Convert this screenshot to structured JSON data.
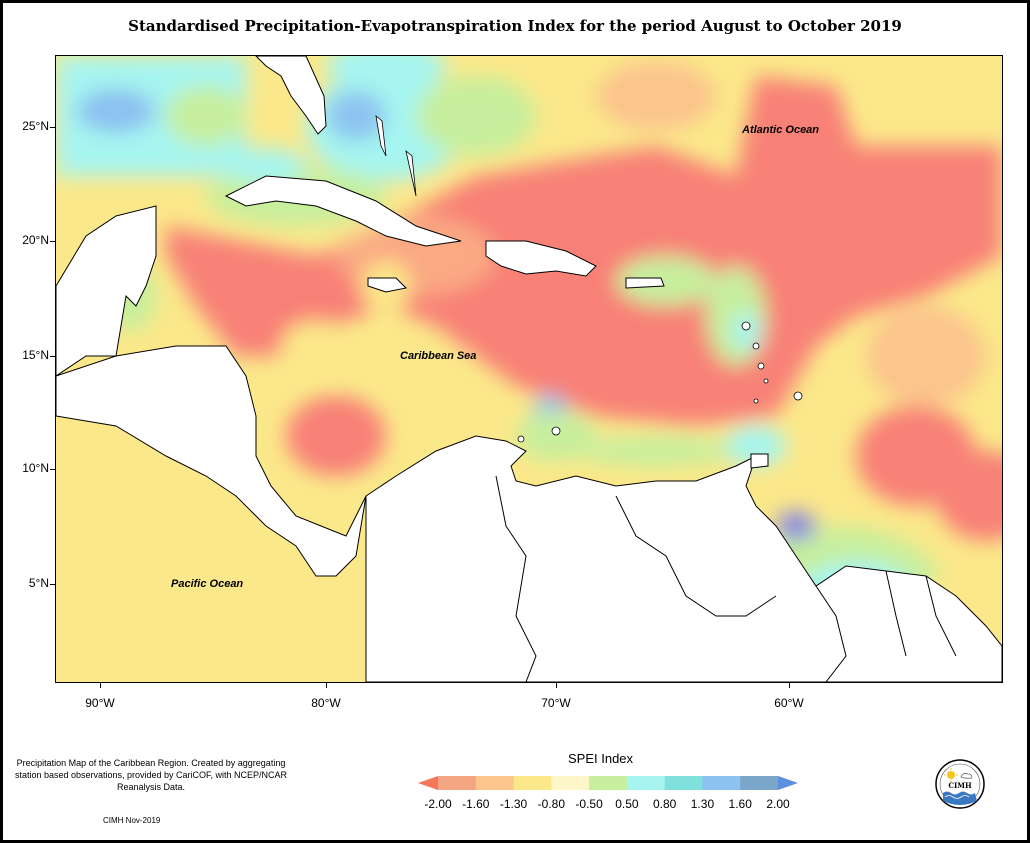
{
  "title": "Standardised Precipitation-Evapotranspiration Index for the period August to October 2019",
  "map": {
    "lat_labels": [
      "25°N",
      "20°N",
      "15°N",
      "10°N",
      "5°N"
    ],
    "lon_labels": [
      "90°W",
      "80°W",
      "70°W",
      "60°W"
    ],
    "ocean_labels": {
      "atlantic": "Atlantic Ocean",
      "caribbean": "Caribbean Sea",
      "pacific": "Pacific Ocean"
    }
  },
  "legend": {
    "title": "SPEI Index",
    "values": [
      "-2.00",
      "-1.60",
      "-1.30",
      "-0.80",
      "-0.50",
      "0.50",
      "0.80",
      "1.30",
      "1.60",
      "2.00"
    ],
    "colors": [
      "#f4775c",
      "#f4a582",
      "#fbc58c",
      "#fbe88a",
      "#fdf6c8",
      "#c7ef9d",
      "#a6f5f0",
      "#7fe0dc",
      "#8cc3f0",
      "#7aa6c9",
      "#5b8fe0"
    ]
  },
  "note": {
    "text": "Precipitation Map of the Caribbean Region. Created by aggregating station based observations, provided by CariCOF, with NCEP/NCAR Reanalysis Data.",
    "credit": "CIMH Nov-2019"
  },
  "logo": {
    "acronym": "CIMH",
    "name": "Caribbean Institute for Meteorology and Hydrology"
  },
  "colors": {
    "red": "#f88177",
    "orange": "#fbc58c",
    "yellow": "#fbe88a",
    "green": "#c7ef9d",
    "cyan": "#a6f5f0",
    "blue": "#8cc3f0",
    "purple": "#8a88e0"
  }
}
